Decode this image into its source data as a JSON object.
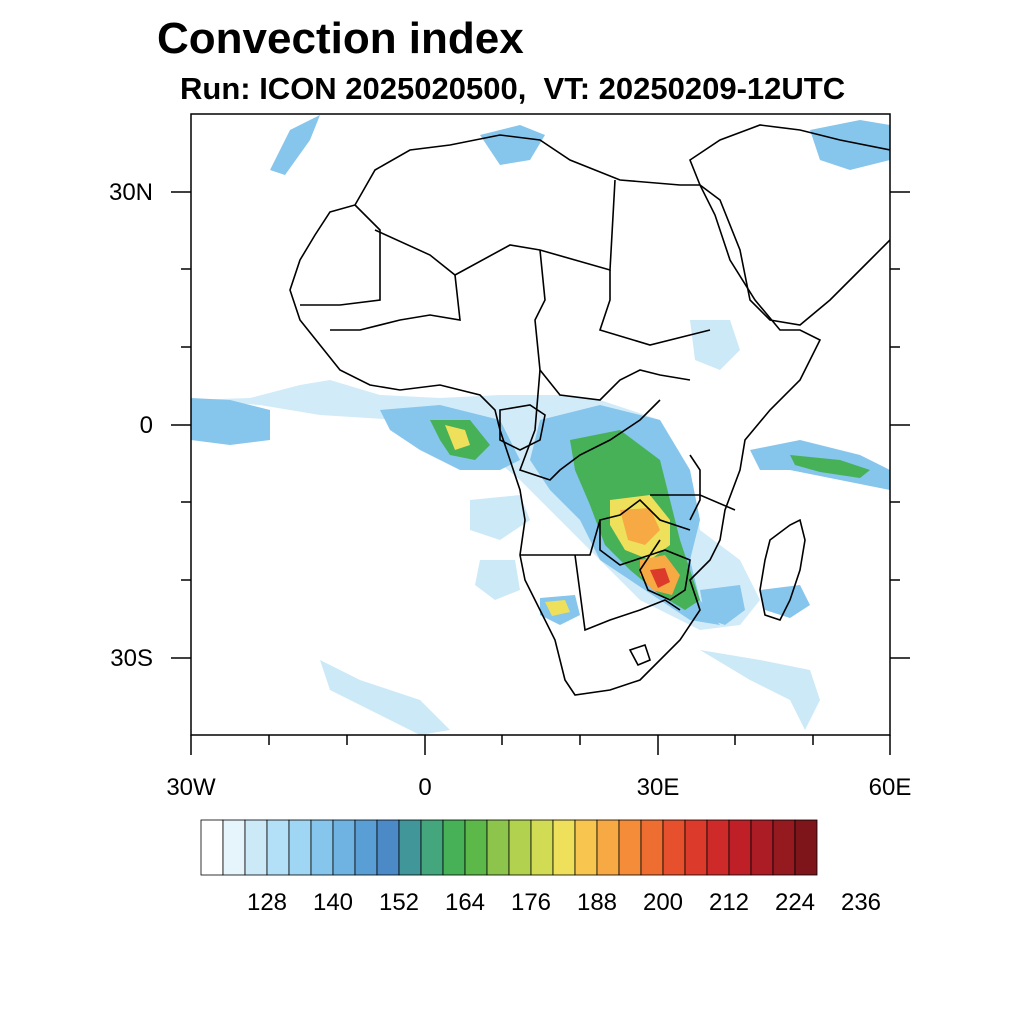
{
  "title": "Convection index",
  "subtitle": "Run: ICON 2025020500,  VT: 20250209-12UTC",
  "lat_labels": [
    "30N",
    "0",
    "30S"
  ],
  "lon_labels": [
    "30W",
    "0",
    "30E",
    "60E"
  ],
  "colorbar": {
    "labels": [
      "128",
      "140",
      "152",
      "164",
      "176",
      "188",
      "200",
      "212",
      "224",
      "236"
    ],
    "colors": [
      "#ffffff",
      "#e6f4fc",
      "#cce9f8",
      "#b3e0f6",
      "#9fd6f3",
      "#86c5ec",
      "#6fb3e2",
      "#5a9ed6",
      "#4b8ac7",
      "#41969a",
      "#44a67c",
      "#46b156",
      "#5cb848",
      "#8dc44c",
      "#b1d14f",
      "#d1dc54",
      "#eee05a",
      "#f8c64f",
      "#f7a943",
      "#f48c3a",
      "#ee6d31",
      "#e6502c",
      "#dc3a2a",
      "#cf2a2a",
      "#bf2027",
      "#ab1c24",
      "#941a20",
      "#7e151b"
    ]
  },
  "map": {
    "lon_range": [
      -30,
      60
    ],
    "lat_range": [
      -40,
      40
    ],
    "projection": "cylindrical equidistant"
  }
}
